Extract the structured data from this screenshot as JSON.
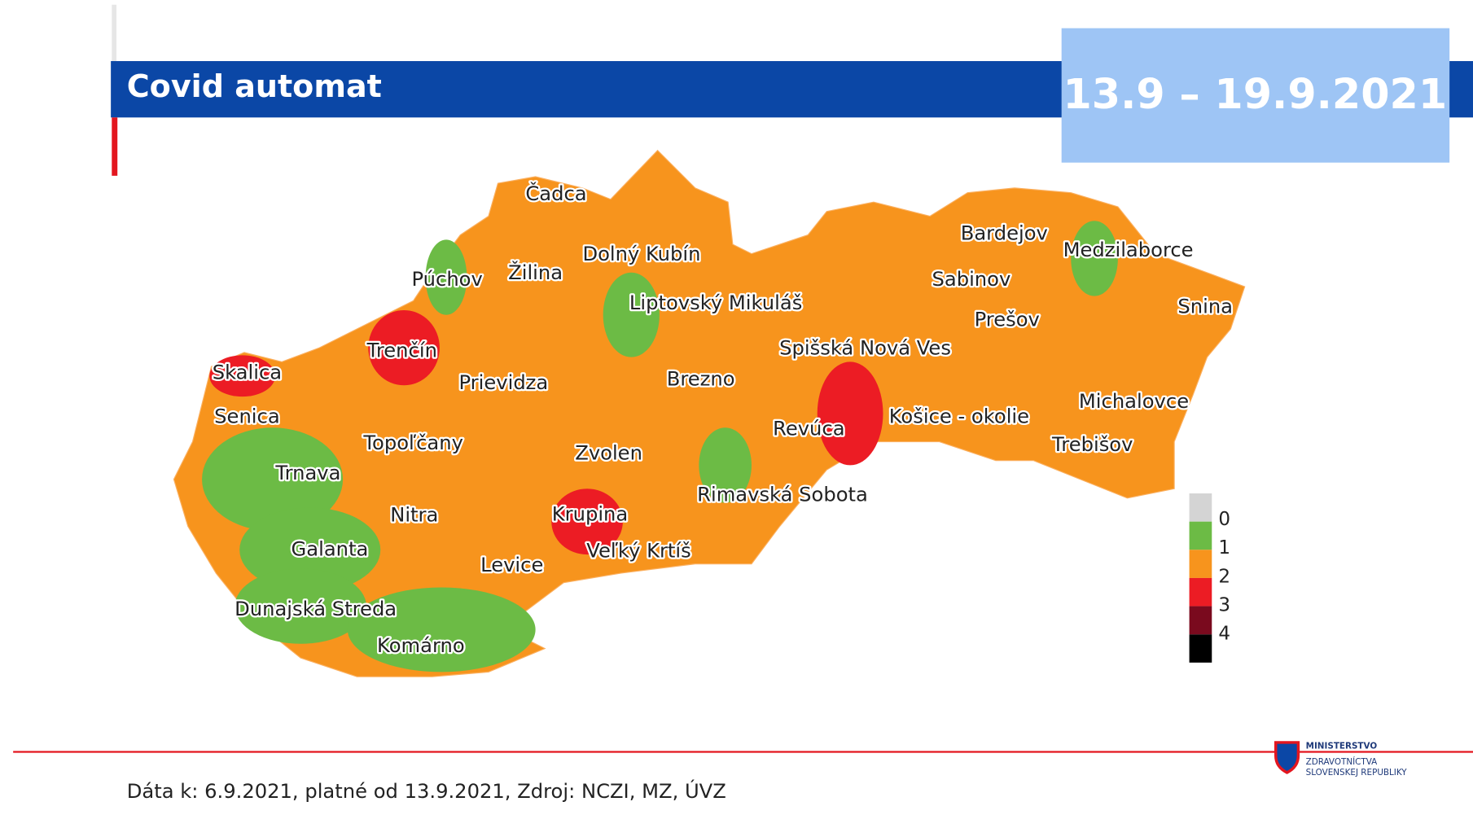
{
  "header": {
    "title": "Covid automat",
    "period": "13.9 – 19.9.2021"
  },
  "map": {
    "districts": [
      {
        "label": "Čadca",
        "level": 2
      },
      {
        "label": "Dolný Kubín",
        "level": 2
      },
      {
        "label": "Žilina",
        "level": 2
      },
      {
        "label": "Púchov",
        "level": 1
      },
      {
        "label": "Liptovský Mikuláš",
        "level": 1
      },
      {
        "label": "Trenčín",
        "level": 3
      },
      {
        "label": "Skalica",
        "level": 3
      },
      {
        "label": "Senica",
        "level": 2
      },
      {
        "label": "Prievidza",
        "level": 2
      },
      {
        "label": "Brezno",
        "level": 2
      },
      {
        "label": "Spišská Nová Ves",
        "level": 2
      },
      {
        "label": "Revúca",
        "level": 2
      },
      {
        "label": "Košice - okolie",
        "level": 3
      },
      {
        "label": "Michalovce",
        "level": 2
      },
      {
        "label": "Trebišov",
        "level": 2
      },
      {
        "label": "Medzilaborce",
        "level": 1
      },
      {
        "label": "Snina",
        "level": 2
      },
      {
        "label": "Bardejov",
        "level": 2
      },
      {
        "label": "Sabinov",
        "level": 2
      },
      {
        "label": "Prešov",
        "level": 2
      },
      {
        "label": "Topoľčany",
        "level": 2
      },
      {
        "label": "Trnava",
        "level": 1
      },
      {
        "label": "Nitra",
        "level": 2
      },
      {
        "label": "Zvolen",
        "level": 2
      },
      {
        "label": "Krupina",
        "level": 3
      },
      {
        "label": "Veľký Krtíš",
        "level": 2
      },
      {
        "label": "Rimavská Sobota",
        "level": 1
      },
      {
        "label": "Levice",
        "level": 2
      },
      {
        "label": "Galanta",
        "level": 1
      },
      {
        "label": "Dunajská Streda",
        "level": 1
      },
      {
        "label": "Komárno",
        "level": 1
      }
    ]
  },
  "legend": [
    {
      "level": 0,
      "color": "#d4d4d4"
    },
    {
      "level": 1,
      "color": "#6cbb45"
    },
    {
      "level": 2,
      "color": "#f7941d"
    },
    {
      "level": 3,
      "color": "#ec1c24"
    },
    {
      "level": 4,
      "color": "#7a0a1e"
    }
  ],
  "footer": {
    "source": "Dáta k: 6.9.2021, platné od 13.9.2021, Zdroj: NCZI, MZ, ÚVZ",
    "logo": [
      "MINISTERSTVO",
      "ZDRAVOTNÍCTVA",
      "SLOVENSKEJ REPUBLIKY"
    ]
  }
}
